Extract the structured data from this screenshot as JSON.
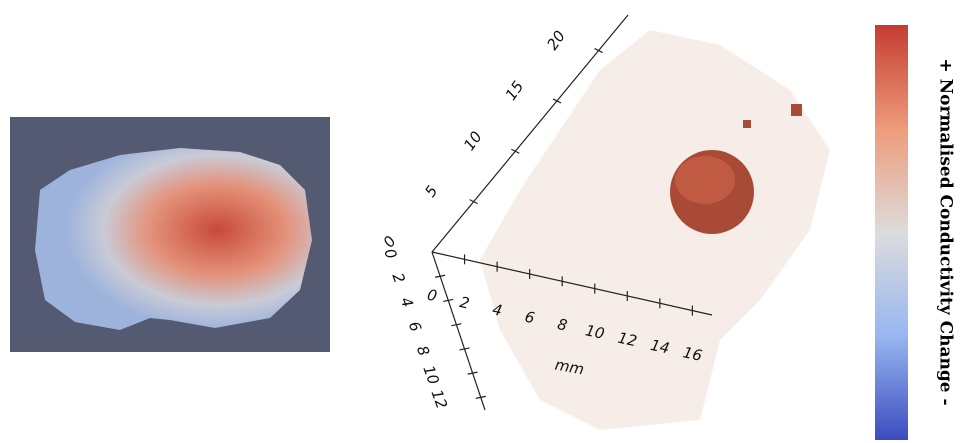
{
  "axes3d": {
    "vertical_ticks": [
      0,
      5,
      10,
      15,
      20
    ],
    "horizontal_ticks": [
      0,
      2,
      4,
      6,
      8,
      10,
      12,
      14,
      16
    ],
    "horizontal_label": "mm",
    "depth_ticks": [
      0,
      2,
      4,
      6,
      8,
      10,
      12
    ]
  },
  "colorbar": {
    "label": "+ Normalised Conductivity Change -"
  }
}
